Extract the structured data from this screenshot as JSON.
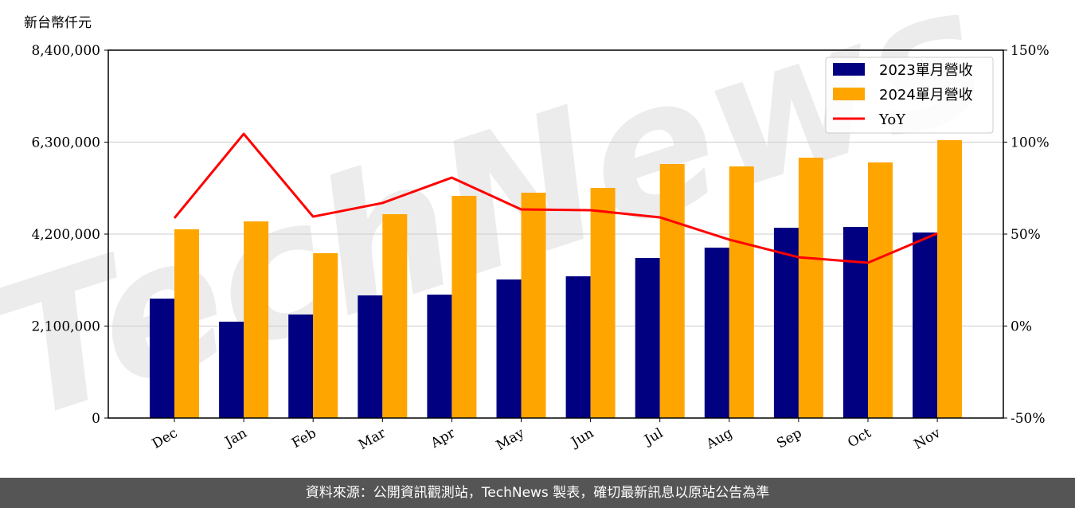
{
  "chart_data": {
    "type": "bar",
    "unit_label": "新台幣仟元",
    "categories": [
      "Dec",
      "Jan",
      "Feb",
      "Mar",
      "Apr",
      "May",
      "Jun",
      "Jul",
      "Aug",
      "Sep",
      "Oct",
      "Nov"
    ],
    "series": [
      {
        "name": "2023單月營收",
        "type": "bar",
        "axis": "left",
        "color": "#000080",
        "values": [
          2727000,
          2200000,
          2364000,
          2800000,
          2818000,
          3164000,
          3236000,
          3655000,
          3891000,
          4345000,
          4364000,
          4236000
        ]
      },
      {
        "name": "2024單月營收",
        "type": "bar",
        "axis": "left",
        "color": "#FFA500",
        "values": [
          4309000,
          4490000,
          3764000,
          4655000,
          5073000,
          5145000,
          5255000,
          5800000,
          5745000,
          5945000,
          5836000,
          6345000
        ]
      },
      {
        "name": "YoY",
        "type": "line",
        "axis": "right",
        "color": "#FF0000",
        "values": [
          58.7,
          104.5,
          59.5,
          66.9,
          80.7,
          63.4,
          63.0,
          59.1,
          47.0,
          37.4,
          34.4,
          50.4
        ]
      }
    ],
    "left_axis": {
      "ylim": [
        0,
        8400000
      ],
      "ticks": [
        0,
        2100000,
        4200000,
        6300000,
        8400000
      ],
      "tick_labels": [
        "0",
        "2,100,000",
        "4,200,000",
        "6,300,000",
        "8,400,000"
      ]
    },
    "right_axis": {
      "ylim": [
        -50,
        150
      ],
      "ticks": [
        -50,
        0,
        50,
        100,
        150
      ],
      "tick_labels": [
        "-50%",
        "0%",
        "50%",
        "100%",
        "150%"
      ]
    },
    "grid": true,
    "legend_position": "top-right",
    "watermark": "TechNews"
  },
  "footer": {
    "source": "資料來源：公開資訊觀測站，TechNews 製表，確切最新訊息以原站公告為準"
  }
}
